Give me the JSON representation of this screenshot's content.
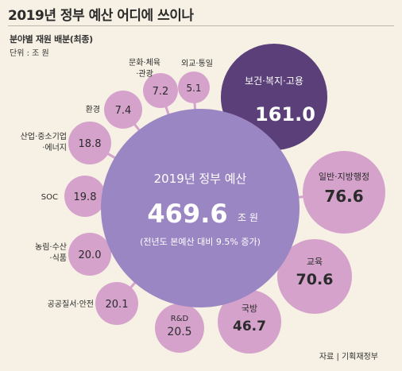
{
  "header": {
    "title": "2019년 정부 예산 어디에 쓰이나",
    "subtitle": "분야별 재원 배분(최종)",
    "unit": "단위 : 조 원",
    "source": "자료 | 기획재정부"
  },
  "colors": {
    "background": "#f6f1e4",
    "center_bubble": "#9b86c4",
    "highlight_bubble": "#5a3f79",
    "bubble": "#d5a2cc",
    "text_dark": "#2b2b2b",
    "text_light": "#ffffff"
  },
  "chart_data": {
    "type": "bubble",
    "title": "2019년 정부 예산 어디에 쓰이나",
    "subtitle": "분야별 재원 배분(최종)",
    "unit": "조 원",
    "total": {
      "label": "2019년 정부 예산",
      "value": "469.6",
      "unit": "조 원",
      "note": "(전년도 본예산 대비 9.5% 증가)"
    },
    "categories": [
      {
        "name": "보건·복지·고용",
        "value": "161.0"
      },
      {
        "name": "일반·지방행정",
        "value": "76.6"
      },
      {
        "name": "교육",
        "value": "70.6"
      },
      {
        "name": "국방",
        "value": "46.7"
      },
      {
        "name": "R&D",
        "value": "20.5"
      },
      {
        "name": "공공질서·안전",
        "value": "20.1"
      },
      {
        "name": "농림·수산·식품",
        "value": "20.0"
      },
      {
        "name": "SOC",
        "value": "19.8"
      },
      {
        "name": "산업·중소기업·에너지",
        "value": "18.8"
      },
      {
        "name": "환경",
        "value": "7.4"
      },
      {
        "name": "문화·체육·관광",
        "value": "7.2"
      },
      {
        "name": "외교·통일",
        "value": "5.1"
      }
    ]
  }
}
